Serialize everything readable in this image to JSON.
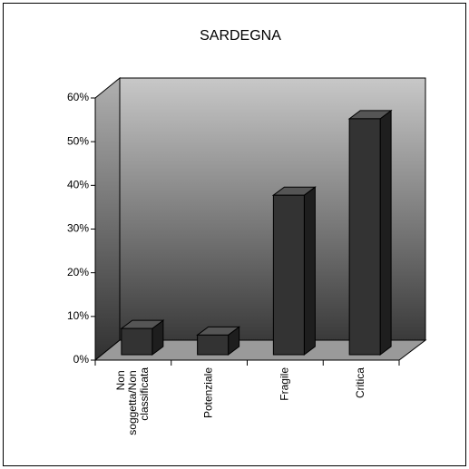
{
  "chart_data": {
    "type": "bar3d",
    "title": "SARDEGNA",
    "categories": [
      "Non soggetta/Non classificata",
      "Potenziale",
      "Fragile",
      "Critica"
    ],
    "values": [
      6,
      4.5,
      36.5,
      54
    ],
    "color": "#333333",
    "ylim": [
      0,
      60
    ],
    "yticks": [
      {
        "value": 0,
        "label": "0%"
      },
      {
        "value": 10,
        "label": "10%"
      },
      {
        "value": 20,
        "label": "20%"
      },
      {
        "value": 30,
        "label": "30%"
      },
      {
        "value": 40,
        "label": "40%"
      },
      {
        "value": 50,
        "label": "50%"
      },
      {
        "value": 60,
        "label": "60%"
      }
    ],
    "grid": false
  }
}
